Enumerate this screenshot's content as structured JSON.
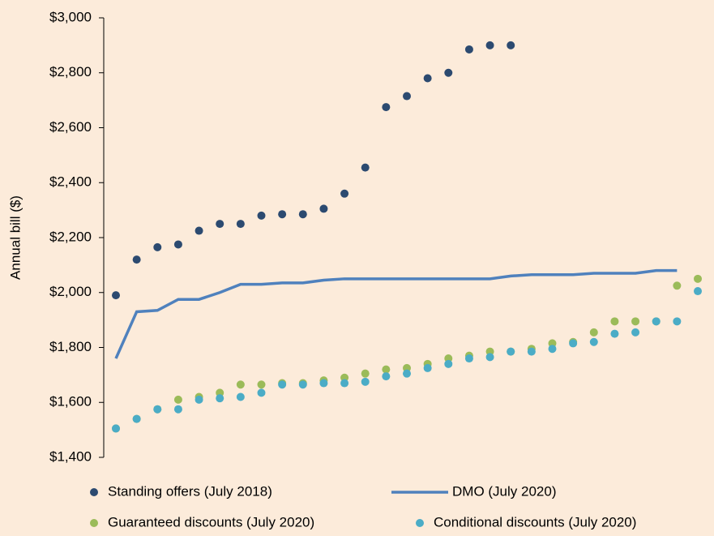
{
  "chart_data": {
    "type": "scatter",
    "y_label": "Annual bill ($)",
    "categories": [
      null,
      null,
      null,
      null,
      null,
      null,
      null,
      null,
      null,
      null,
      null,
      null,
      null,
      null,
      null,
      null,
      null,
      null,
      null,
      null,
      null,
      null,
      null,
      null,
      null,
      null,
      null,
      null,
      null
    ],
    "ylim": [
      1400,
      3000
    ],
    "yticks": [
      {
        "value": 1400,
        "label": "$1,400"
      },
      {
        "value": 1600,
        "label": "$1,600"
      },
      {
        "value": 1800,
        "label": "$1,800"
      },
      {
        "value": 2000,
        "label": "$2,000"
      },
      {
        "value": 2200,
        "label": "$2,200"
      },
      {
        "value": 2400,
        "label": "$2,400"
      },
      {
        "value": 2600,
        "label": "$2,600"
      },
      {
        "value": 2800,
        "label": "$2,800"
      },
      {
        "value": 3000,
        "label": "$3,000"
      }
    ],
    "series": [
      {
        "name": "Standing offers (July 2018)",
        "color": "#2c4a70",
        "mark": "dot",
        "values": [
          1990,
          2120,
          2165,
          2175,
          2225,
          2250,
          2250,
          2280,
          2285,
          2285,
          2305,
          2360,
          2455,
          2675,
          2715,
          2780,
          2800,
          2885,
          2900,
          2900,
          null,
          null,
          null,
          null,
          null,
          null,
          null,
          null,
          null
        ]
      },
      {
        "name": "DMO (July 2020)",
        "color": "#4f81bd",
        "mark": "line",
        "values": [
          1760,
          1930,
          1935,
          1975,
          1975,
          2000,
          2030,
          2030,
          2035,
          2035,
          2045,
          2050,
          2050,
          2050,
          2050,
          2050,
          2050,
          2050,
          2050,
          2060,
          2065,
          2065,
          2065,
          2070,
          2070,
          2070,
          2080,
          2080,
          null
        ]
      },
      {
        "name": "Guaranteed discounts (July 2020)",
        "color": "#9bbb59",
        "mark": "dot",
        "values": [
          1505,
          1540,
          1575,
          1610,
          1620,
          1635,
          1665,
          1665,
          1670,
          1670,
          1680,
          1690,
          1705,
          1720,
          1725,
          1740,
          1760,
          1770,
          1785,
          1785,
          1795,
          1815,
          1820,
          1855,
          1895,
          1895,
          1895,
          2025,
          2050
        ]
      },
      {
        "name": "Conditional discounts (July 2020)",
        "color": "#4bacc6",
        "mark": "dot",
        "values": [
          1505,
          1540,
          1575,
          1575,
          1610,
          1615,
          1620,
          1635,
          1665,
          1665,
          1670,
          1670,
          1675,
          1695,
          1705,
          1725,
          1740,
          1760,
          1765,
          1785,
          1785,
          1795,
          1815,
          1820,
          1850,
          1855,
          1895,
          1895,
          2005
        ]
      }
    ]
  }
}
